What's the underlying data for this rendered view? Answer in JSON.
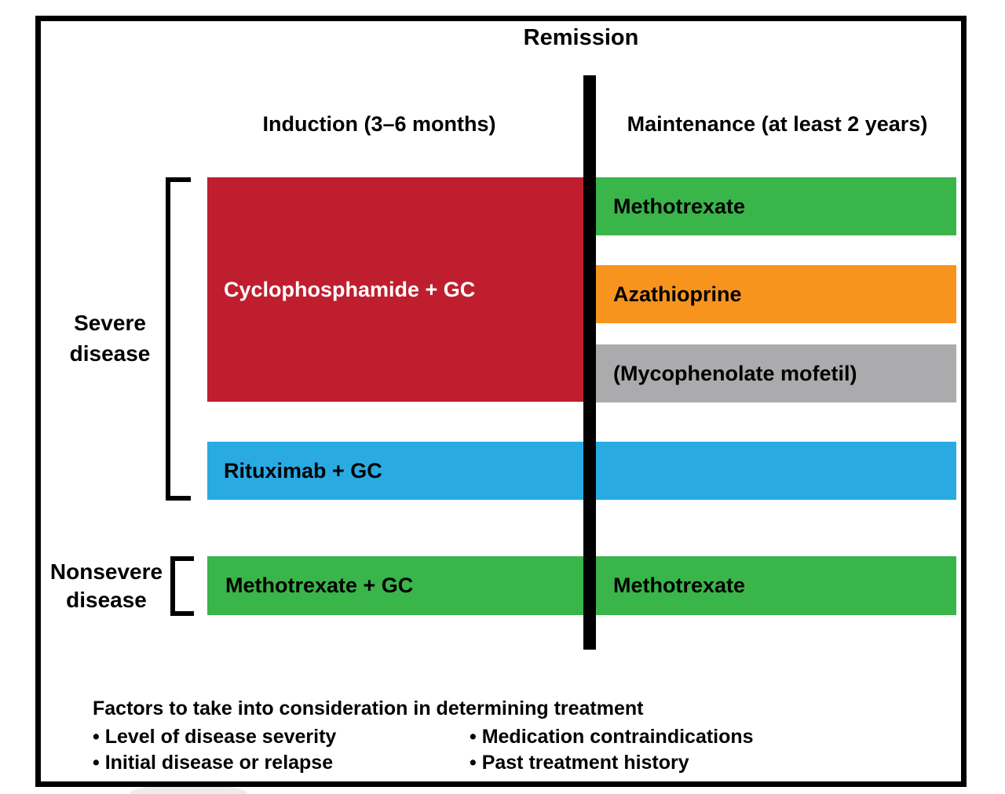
{
  "figure": {
    "title": "Remission",
    "phase_headers": {
      "induction": "Induction (3–6 months)",
      "maintenance": "Maintenance (at least 2 years)"
    },
    "row_groups": {
      "severe": {
        "line1": "Severe",
        "line2": "disease"
      },
      "nonsevere": {
        "line1": "Nonsevere",
        "line2": "disease"
      }
    },
    "bars": {
      "cyclophosphamide": {
        "label": "Cyclophosphamide + GC",
        "color": "#bf1e2e",
        "text_color": "#ffffff"
      },
      "maintenance_methotrexate_severe": {
        "label": "Methotrexate",
        "color": "#3ab54a",
        "text_color": "#000000"
      },
      "azathioprine": {
        "label": "Azathioprine",
        "color": "#f7941e",
        "text_color": "#000000"
      },
      "mycophenolate": {
        "label": "(Mycophenolate mofetil)",
        "color": "#ababad",
        "text_color": "#000000"
      },
      "rituximab": {
        "label": "Rituximab + GC",
        "color": "#29abe2",
        "text_color": "#000000"
      },
      "induction_methotrexate": {
        "label": "Methotrexate + GC",
        "color": "#3ab54a",
        "text_color": "#000000"
      },
      "maintenance_methotrexate_nonsevere": {
        "label": "Methotrexate",
        "color": "#3ab54a",
        "text_color": "#000000"
      }
    },
    "divider_color": "#000000",
    "frame_color": "#000000",
    "footer": {
      "title": "Factors to take into consideration in determining treatment",
      "column1": [
        "• Level of disease severity",
        "• Initial disease or relapse"
      ],
      "column2": [
        "• Medication contraindications",
        "• Past treatment history"
      ]
    }
  }
}
